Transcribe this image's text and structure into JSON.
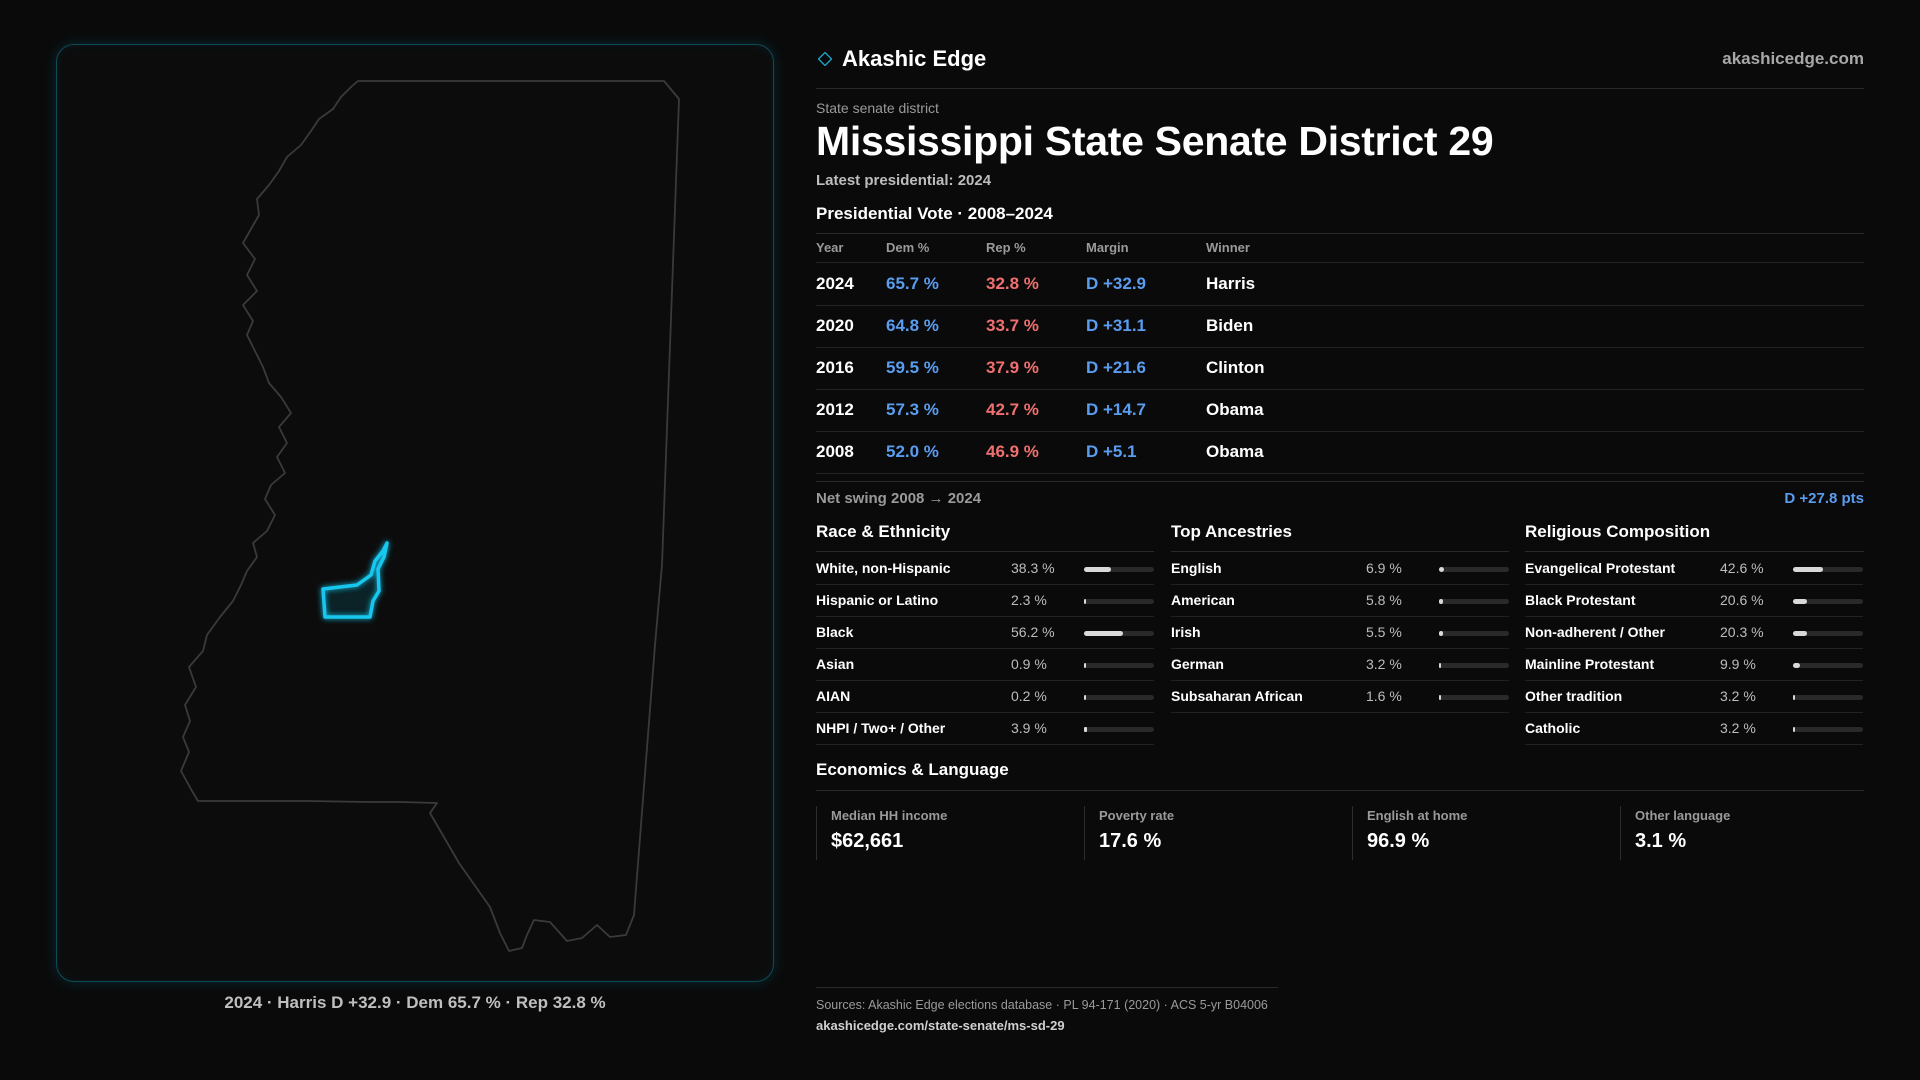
{
  "brand": {
    "name": "Akashic Edge",
    "url": "akashicedge.com"
  },
  "district": {
    "kicker": "State senate district",
    "title": "Mississippi State Senate District 29",
    "latest": "Latest presidential: 2024"
  },
  "map": {
    "caption": "2024 · Harris D +32.9 · Dem 65.7 % · Rep 32.8 %",
    "state_outline_color": "#3a3a3a",
    "district_highlight_color": "#19c8ef"
  },
  "vote": {
    "heading": "Presidential Vote · 2008–2024",
    "columns": [
      "Year",
      "Dem %",
      "Rep %",
      "Margin",
      "Winner"
    ],
    "rows": [
      {
        "year": "2024",
        "dem": "65.7 %",
        "rep": "32.8 %",
        "margin": "D +32.9",
        "winner": "Harris"
      },
      {
        "year": "2020",
        "dem": "64.8 %",
        "rep": "33.7 %",
        "margin": "D +31.1",
        "winner": "Biden"
      },
      {
        "year": "2016",
        "dem": "59.5 %",
        "rep": "37.9 %",
        "margin": "D +21.6",
        "winner": "Clinton"
      },
      {
        "year": "2012",
        "dem": "57.3 %",
        "rep": "42.7 %",
        "margin": "D +14.7",
        "winner": "Obama"
      },
      {
        "year": "2008",
        "dem": "52.0 %",
        "rep": "46.9 %",
        "margin": "D +5.1",
        "winner": "Obama"
      }
    ],
    "swing_label": "Net swing 2008 → 2024",
    "swing_value": "D +27.8 pts",
    "dem_color": "#5a9df0",
    "rep_color": "#f07070"
  },
  "race": {
    "heading": "Race & Ethnicity",
    "items": [
      {
        "label": "White, non-Hispanic",
        "value": "38.3 %",
        "pct": 38.3
      },
      {
        "label": "Hispanic or Latino",
        "value": "2.3 %",
        "pct": 2.3
      },
      {
        "label": "Black",
        "value": "56.2 %",
        "pct": 56.2
      },
      {
        "label": "Asian",
        "value": "0.9 %",
        "pct": 0.9
      },
      {
        "label": "AIAN",
        "value": "0.2 %",
        "pct": 0.2
      },
      {
        "label": "NHPI / Two+ / Other",
        "value": "3.9 %",
        "pct": 3.9
      }
    ]
  },
  "ancestry": {
    "heading": "Top Ancestries",
    "items": [
      {
        "label": "English",
        "value": "6.9 %",
        "pct": 6.9
      },
      {
        "label": "American",
        "value": "5.8 %",
        "pct": 5.8
      },
      {
        "label": "Irish",
        "value": "5.5 %",
        "pct": 5.5
      },
      {
        "label": "German",
        "value": "3.2 %",
        "pct": 3.2
      },
      {
        "label": "Subsaharan African",
        "value": "1.6 %",
        "pct": 1.6
      }
    ]
  },
  "religion": {
    "heading": "Religious Composition",
    "items": [
      {
        "label": "Evangelical Protestant",
        "value": "42.6 %",
        "pct": 42.6
      },
      {
        "label": "Black Protestant",
        "value": "20.6 %",
        "pct": 20.6
      },
      {
        "label": "Non-adherent / Other",
        "value": "20.3 %",
        "pct": 20.3
      },
      {
        "label": "Mainline Protestant",
        "value": "9.9 %",
        "pct": 9.9
      },
      {
        "label": "Other tradition",
        "value": "3.2 %",
        "pct": 3.2
      },
      {
        "label": "Catholic",
        "value": "3.2 %",
        "pct": 3.2
      }
    ]
  },
  "econ": {
    "heading": "Economics & Language",
    "items": [
      {
        "label": "Median HH income",
        "value": "$62,661"
      },
      {
        "label": "Poverty rate",
        "value": "17.6 %"
      },
      {
        "label": "English at home",
        "value": "96.9 %"
      },
      {
        "label": "Other language",
        "value": "3.1 %"
      }
    ]
  },
  "footer": {
    "sources": "Sources: Akashic Edge elections database · PL 94-171 (2020) · ACS 5-yr B04006",
    "link": "akashicedge.com/state-senate/ms-sd-29"
  }
}
